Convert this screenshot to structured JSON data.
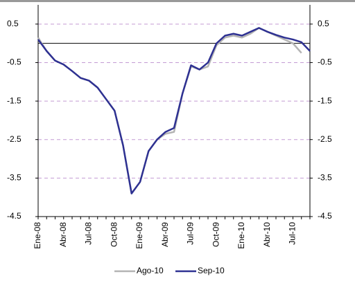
{
  "chart_data": {
    "type": "line",
    "categories": [
      "Ene-08",
      null,
      null,
      "Abr-08",
      null,
      null,
      "Jul-08",
      null,
      null,
      "Oct-08",
      null,
      null,
      "Ene-09",
      null,
      null,
      "Abr-09",
      null,
      null,
      "Jul-09",
      null,
      null,
      "Oct-09",
      null,
      null,
      "Ene-10",
      null,
      null,
      "Abr-10",
      null,
      null,
      "Jul-10",
      null,
      null
    ],
    "series": [
      {
        "name": "Ago-10",
        "color": "#b4b4b4",
        "values": [
          0.15,
          -0.2,
          -0.45,
          -0.55,
          -0.72,
          -0.9,
          -0.97,
          -1.15,
          -1.45,
          -1.75,
          -2.65,
          -3.9,
          -3.6,
          -2.8,
          -2.5,
          -2.35,
          -2.3,
          -1.3,
          -0.6,
          -0.68,
          -0.6,
          -0.05,
          0.15,
          0.2,
          0.15,
          0.25,
          0.4,
          0.3,
          0.2,
          0.1,
          0.0,
          -0.25,
          null
        ]
      },
      {
        "name": "Sep-10",
        "color": "#2e3192",
        "values": [
          0.1,
          -0.2,
          -0.45,
          -0.55,
          -0.72,
          -0.9,
          -0.97,
          -1.15,
          -1.45,
          -1.75,
          -2.65,
          -3.9,
          -3.6,
          -2.8,
          -2.5,
          -2.3,
          -2.2,
          -1.3,
          -0.57,
          -0.68,
          -0.5,
          0.0,
          0.2,
          0.25,
          0.2,
          0.3,
          0.4,
          0.3,
          0.22,
          0.15,
          0.1,
          0.03,
          -0.2
        ]
      }
    ],
    "ylim": [
      -4.5,
      1
    ],
    "yticks": [
      -4.5,
      -3.5,
      -2.5,
      -1.5,
      -0.5,
      0.5
    ],
    "y2lim": [
      -4.5,
      1
    ],
    "y2ticks": [
      -4.5,
      -3.5,
      -2.5,
      -1.5,
      -0.5,
      0.5
    ],
    "grid": true,
    "zero_line": true,
    "legend": "bottom"
  }
}
